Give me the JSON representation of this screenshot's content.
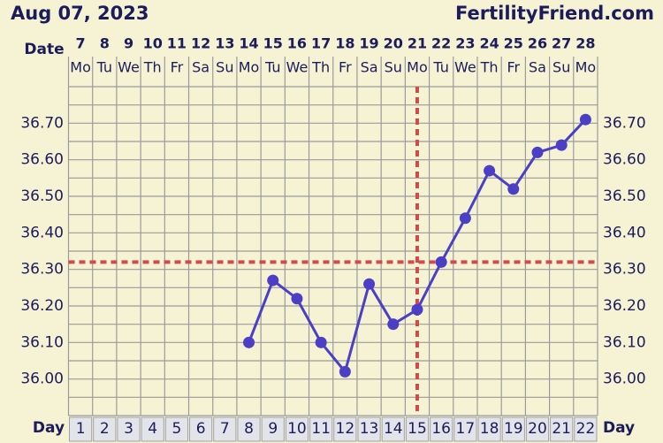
{
  "chart_data": {
    "type": "line",
    "title": "Aug 07, 2023",
    "site": "FertilityFriend.com",
    "date_label": "Date",
    "x_label": "Day",
    "dates": [
      "7",
      "8",
      "9",
      "10",
      "11",
      "12",
      "13",
      "14",
      "15",
      "16",
      "17",
      "18",
      "19",
      "20",
      "21",
      "22",
      "23",
      "24",
      "25",
      "26",
      "27",
      "28"
    ],
    "weekdays": [
      "Mo",
      "Tu",
      "We",
      "Th",
      "Fr",
      "Sa",
      "Su",
      "Mo",
      "Tu",
      "We",
      "Th",
      "Fr",
      "Sa",
      "Su",
      "Mo",
      "Tu",
      "We",
      "Th",
      "Fr",
      "Sa",
      "Su",
      "Mo"
    ],
    "categories": [
      1,
      2,
      3,
      4,
      5,
      6,
      7,
      8,
      9,
      10,
      11,
      12,
      13,
      14,
      15,
      16,
      17,
      18,
      19,
      20,
      21,
      22
    ],
    "values": [
      null,
      null,
      null,
      null,
      null,
      null,
      null,
      36.1,
      36.27,
      36.22,
      36.1,
      36.02,
      36.26,
      36.15,
      36.19,
      36.32,
      36.44,
      36.57,
      36.52,
      36.62,
      36.64,
      36.71
    ],
    "color": "#4b3fc6",
    "coverline": 36.32,
    "ovulation_day": 15,
    "marker_color": "#d24a4a",
    "ylim": [
      35.9,
      36.8
    ],
    "yticks": [
      {
        "value": 36.0,
        "label": "36.00"
      },
      {
        "value": 36.1,
        "label": "36.10"
      },
      {
        "value": 36.2,
        "label": "36.20"
      },
      {
        "value": 36.3,
        "label": "36.30"
      },
      {
        "value": 36.4,
        "label": "36.40"
      },
      {
        "value": 36.5,
        "label": "36.50"
      },
      {
        "value": 36.6,
        "label": "36.60"
      },
      {
        "value": 36.7,
        "label": "36.70"
      }
    ],
    "minor_yticks": [
      35.9,
      35.95,
      36.05,
      36.15,
      36.25,
      36.35,
      36.45,
      36.55,
      36.65,
      36.75,
      36.8
    ],
    "grid": true
  }
}
